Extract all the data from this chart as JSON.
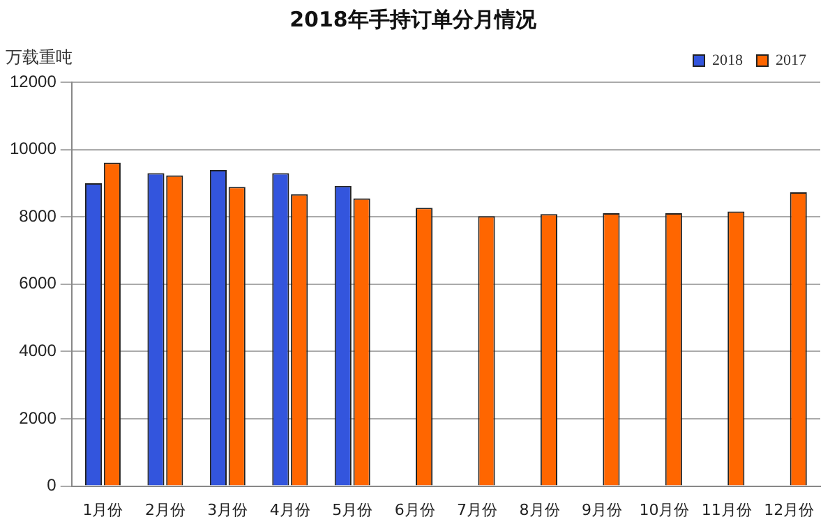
{
  "chart_data": {
    "type": "bar",
    "title": "2018年手持订单分月情况",
    "ylabel": "万载重吨",
    "categories": [
      "1月份",
      "2月份",
      "3月份",
      "4月份",
      "5月份",
      "6月份",
      "7月份",
      "8月份",
      "9月份",
      "10月份",
      "11月份",
      "12月份"
    ],
    "series": [
      {
        "name": "2018",
        "color": "#3355dd",
        "values": [
          9000,
          9300,
          9390,
          9300,
          8920,
          null,
          null,
          null,
          null,
          null,
          null,
          null
        ]
      },
      {
        "name": "2017",
        "color": "#ff6600",
        "values": [
          9610,
          9230,
          8890,
          8670,
          8550,
          8270,
          8020,
          8080,
          8110,
          8110,
          8160,
          8730
        ]
      }
    ],
    "ylim": [
      0,
      12000
    ],
    "yticks": [
      0,
      2000,
      4000,
      6000,
      8000,
      10000,
      12000
    ],
    "grid": "y",
    "legend": "top right"
  }
}
